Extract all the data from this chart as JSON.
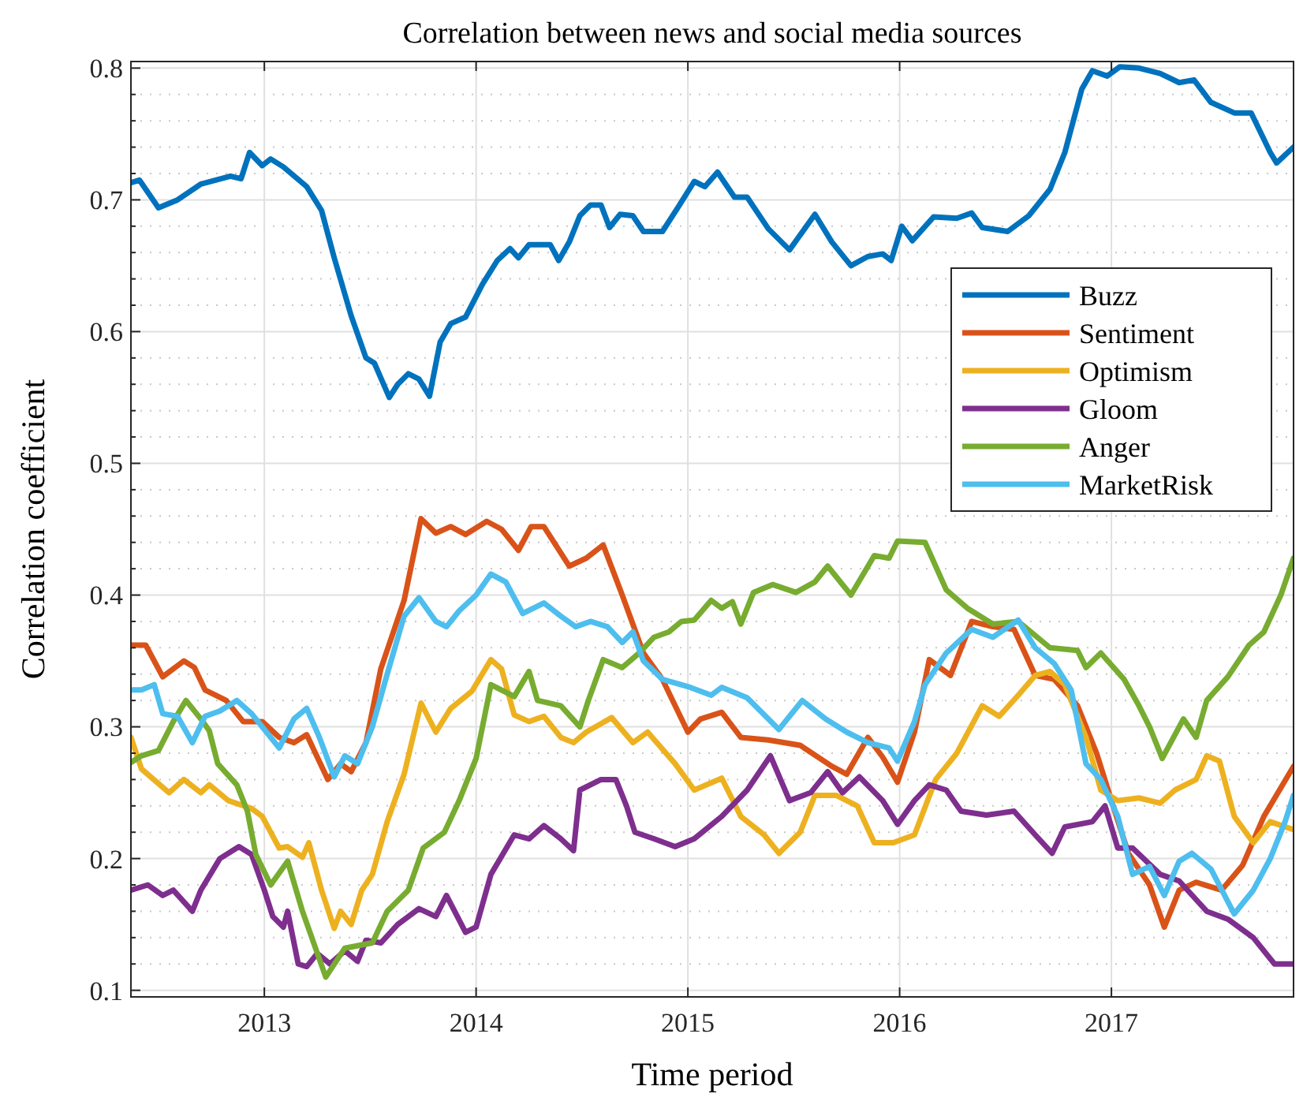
{
  "chart_data": {
    "type": "line",
    "title": "Correlation between news and social media sources",
    "xlabel": "Time period",
    "ylabel": "Correlation coefficient",
    "xlim": [
      2012.37,
      2017.86
    ],
    "xticks": [
      2013,
      2014,
      2015,
      2016,
      2017
    ],
    "ylim": [
      0.095,
      0.805
    ],
    "yticks": [
      {
        "value": 0.1,
        "label": "0.1"
      },
      {
        "value": 0.12,
        "label": null
      },
      {
        "value": 0.14,
        "label": null
      },
      {
        "value": 0.16,
        "label": null
      },
      {
        "value": 0.18,
        "label": null
      },
      {
        "value": 0.2,
        "label": "0.2"
      },
      {
        "value": 0.22,
        "label": null
      },
      {
        "value": 0.24,
        "label": null
      },
      {
        "value": 0.26,
        "label": null
      },
      {
        "value": 0.28,
        "label": null
      },
      {
        "value": 0.3,
        "label": "0.3"
      },
      {
        "value": 0.32,
        "label": null
      },
      {
        "value": 0.34,
        "label": null
      },
      {
        "value": 0.36,
        "label": null
      },
      {
        "value": 0.38,
        "label": null
      },
      {
        "value": 0.4,
        "label": "0.4"
      },
      {
        "value": 0.42,
        "label": null
      },
      {
        "value": 0.44,
        "label": null
      },
      {
        "value": 0.46,
        "label": null
      },
      {
        "value": 0.48,
        "label": null
      },
      {
        "value": 0.5,
        "label": "0.5"
      },
      {
        "value": 0.52,
        "label": null
      },
      {
        "value": 0.54,
        "label": null
      },
      {
        "value": 0.56,
        "label": null
      },
      {
        "value": 0.58,
        "label": null
      },
      {
        "value": 0.6,
        "label": "0.6"
      },
      {
        "value": 0.62,
        "label": null
      },
      {
        "value": 0.64,
        "label": null
      },
      {
        "value": 0.66,
        "label": null
      },
      {
        "value": 0.68,
        "label": null
      },
      {
        "value": 0.7,
        "label": "0.7"
      },
      {
        "value": 0.72,
        "label": null
      },
      {
        "value": 0.74,
        "label": null
      },
      {
        "value": 0.76,
        "label": null
      },
      {
        "value": 0.78,
        "label": null
      },
      {
        "value": 0.8,
        "label": "0.8"
      }
    ],
    "grid": true,
    "legend": "top right",
    "marker": "none",
    "line_style": "solid",
    "series": [
      {
        "name": "Buzz",
        "color": "#0072bd",
        "x": [
          2012.37,
          2012.41,
          2012.5,
          2012.59,
          2012.7,
          2012.84,
          2012.89,
          2012.93,
          2012.99,
          2013.03,
          2013.09,
          2013.2,
          2013.27,
          2013.33,
          2013.41,
          2013.48,
          2013.52,
          2013.59,
          2013.63,
          2013.68,
          2013.73,
          2013.78,
          2013.83,
          2013.88,
          2013.95,
          2014.03,
          2014.1,
          2014.16,
          2014.2,
          2014.25,
          2014.35,
          2014.39,
          2014.44,
          2014.49,
          2014.54,
          2014.59,
          2014.63,
          2014.68,
          2014.74,
          2014.79,
          2014.88,
          2014.96,
          2015.03,
          2015.08,
          2015.14,
          2015.22,
          2015.28,
          2015.38,
          2015.48,
          2015.6,
          2015.68,
          2015.77,
          2015.85,
          2015.92,
          2015.96,
          2016.01,
          2016.06,
          2016.16,
          2016.27,
          2016.34,
          2016.39,
          2016.51,
          2016.61,
          2016.71,
          2016.78,
          2016.86,
          2016.91,
          2016.98,
          2017.04,
          2017.13,
          2017.23,
          2017.32,
          2017.39,
          2017.47,
          2017.58,
          2017.66,
          2017.75,
          2017.78,
          2017.86
        ],
        "values": [
          0.713,
          0.715,
          0.694,
          0.7,
          0.712,
          0.718,
          0.716,
          0.736,
          0.726,
          0.731,
          0.725,
          0.71,
          0.692,
          0.656,
          0.612,
          0.58,
          0.576,
          0.55,
          0.56,
          0.568,
          0.564,
          0.551,
          0.592,
          0.606,
          0.611,
          0.636,
          0.654,
          0.663,
          0.656,
          0.666,
          0.666,
          0.654,
          0.668,
          0.688,
          0.696,
          0.696,
          0.679,
          0.689,
          0.688,
          0.676,
          0.676,
          0.696,
          0.714,
          0.71,
          0.721,
          0.702,
          0.702,
          0.678,
          0.662,
          0.689,
          0.668,
          0.65,
          0.657,
          0.659,
          0.654,
          0.68,
          0.669,
          0.687,
          0.686,
          0.69,
          0.679,
          0.676,
          0.688,
          0.708,
          0.736,
          0.784,
          0.798,
          0.794,
          0.801,
          0.8,
          0.796,
          0.789,
          0.791,
          0.774,
          0.766,
          0.766,
          0.736,
          0.728,
          0.74
        ]
      },
      {
        "name": "Sentiment",
        "color": "#d95319",
        "x": [
          2012.37,
          2012.44,
          2012.52,
          2012.62,
          2012.67,
          2012.72,
          2012.82,
          2012.9,
          2012.99,
          2013.07,
          2013.14,
          2013.2,
          2013.3,
          2013.36,
          2013.41,
          2013.48,
          2013.55,
          2013.66,
          2013.74,
          2013.81,
          2013.88,
          2013.95,
          2014.05,
          2014.12,
          2014.2,
          2014.26,
          2014.32,
          2014.44,
          2014.52,
          2014.6,
          2014.69,
          2014.79,
          2014.88,
          2015.0,
          2015.06,
          2015.16,
          2015.25,
          2015.38,
          2015.53,
          2015.68,
          2015.75,
          2015.85,
          2015.92,
          2015.99,
          2016.07,
          2016.14,
          2016.24,
          2016.34,
          2016.44,
          2016.54,
          2016.64,
          2016.73,
          2016.84,
          2016.93,
          2017.0,
          2017.08,
          2017.18,
          2017.25,
          2017.32,
          2017.4,
          2017.52,
          2017.62,
          2017.72,
          2017.86
        ],
        "values": [
          0.362,
          0.362,
          0.338,
          0.35,
          0.345,
          0.328,
          0.32,
          0.304,
          0.304,
          0.292,
          0.288,
          0.294,
          0.26,
          0.272,
          0.266,
          0.288,
          0.344,
          0.396,
          0.458,
          0.447,
          0.452,
          0.446,
          0.456,
          0.45,
          0.434,
          0.452,
          0.452,
          0.422,
          0.428,
          0.438,
          0.4,
          0.356,
          0.336,
          0.296,
          0.306,
          0.311,
          0.292,
          0.29,
          0.286,
          0.27,
          0.264,
          0.292,
          0.277,
          0.258,
          0.296,
          0.351,
          0.339,
          0.38,
          0.376,
          0.374,
          0.339,
          0.336,
          0.316,
          0.28,
          0.244,
          0.204,
          0.18,
          0.148,
          0.176,
          0.182,
          0.176,
          0.195,
          0.232,
          0.27
        ]
      },
      {
        "name": "Optimism",
        "color": "#edb120",
        "x": [
          2012.37,
          2012.42,
          2012.55,
          2012.62,
          2012.7,
          2012.74,
          2012.83,
          2012.94,
          2012.99,
          2013.07,
          2013.11,
          2013.18,
          2013.21,
          2013.27,
          2013.33,
          2013.36,
          2013.41,
          2013.46,
          2013.51,
          2013.58,
          2013.66,
          2013.74,
          2013.81,
          2013.88,
          2013.98,
          2014.07,
          2014.12,
          2014.18,
          2014.25,
          2014.32,
          2014.4,
          2014.46,
          2014.52,
          2014.64,
          2014.74,
          2014.81,
          2014.94,
          2015.03,
          2015.16,
          2015.25,
          2015.36,
          2015.43,
          2015.53,
          2015.6,
          2015.7,
          2015.8,
          2015.88,
          2015.97,
          2016.07,
          2016.17,
          2016.27,
          2016.39,
          2016.47,
          2016.56,
          2016.64,
          2016.71,
          2016.78,
          2016.88,
          2016.95,
          2017.03,
          2017.13,
          2017.23,
          2017.3,
          2017.4,
          2017.45,
          2017.51,
          2017.58,
          2017.67,
          2017.75,
          2017.86
        ],
        "values": [
          0.292,
          0.268,
          0.25,
          0.26,
          0.25,
          0.256,
          0.244,
          0.238,
          0.232,
          0.208,
          0.209,
          0.201,
          0.212,
          0.176,
          0.147,
          0.16,
          0.15,
          0.176,
          0.188,
          0.228,
          0.264,
          0.318,
          0.296,
          0.314,
          0.327,
          0.351,
          0.344,
          0.309,
          0.304,
          0.308,
          0.292,
          0.288,
          0.296,
          0.307,
          0.288,
          0.296,
          0.272,
          0.252,
          0.261,
          0.232,
          0.218,
          0.204,
          0.22,
          0.248,
          0.248,
          0.24,
          0.212,
          0.212,
          0.218,
          0.26,
          0.28,
          0.316,
          0.308,
          0.324,
          0.339,
          0.342,
          0.332,
          0.292,
          0.252,
          0.244,
          0.246,
          0.242,
          0.252,
          0.26,
          0.278,
          0.274,
          0.232,
          0.212,
          0.228,
          0.222
        ]
      },
      {
        "name": "Gloom",
        "color": "#7e2f8e",
        "x": [
          2012.37,
          2012.45,
          2012.52,
          2012.57,
          2012.66,
          2012.7,
          2012.79,
          2012.88,
          2012.94,
          2013.0,
          2013.04,
          2013.09,
          2013.11,
          2013.16,
          2013.2,
          2013.25,
          2013.31,
          2013.38,
          2013.44,
          2013.48,
          2013.55,
          2013.63,
          2013.73,
          2013.81,
          2013.86,
          2013.95,
          2014.0,
          2014.07,
          2014.18,
          2014.25,
          2014.32,
          2014.4,
          2014.46,
          2014.49,
          2014.59,
          2014.66,
          2014.71,
          2014.75,
          2014.84,
          2014.94,
          2015.03,
          2015.16,
          2015.28,
          2015.39,
          2015.48,
          2015.58,
          2015.66,
          2015.73,
          2015.81,
          2015.92,
          2015.99,
          2016.07,
          2016.14,
          2016.22,
          2016.29,
          2016.41,
          2016.54,
          2016.64,
          2016.72,
          2016.78,
          2016.91,
          2016.97,
          2017.03,
          2017.1,
          2017.23,
          2017.32,
          2017.45,
          2017.55,
          2017.67,
          2017.77,
          2017.86
        ],
        "values": [
          0.176,
          0.18,
          0.172,
          0.176,
          0.16,
          0.176,
          0.2,
          0.209,
          0.203,
          0.176,
          0.156,
          0.148,
          0.16,
          0.12,
          0.118,
          0.128,
          0.12,
          0.13,
          0.122,
          0.138,
          0.136,
          0.15,
          0.162,
          0.156,
          0.172,
          0.144,
          0.148,
          0.188,
          0.218,
          0.215,
          0.225,
          0.215,
          0.206,
          0.252,
          0.26,
          0.26,
          0.24,
          0.22,
          0.215,
          0.209,
          0.215,
          0.232,
          0.252,
          0.278,
          0.244,
          0.25,
          0.266,
          0.25,
          0.262,
          0.244,
          0.226,
          0.244,
          0.256,
          0.252,
          0.236,
          0.233,
          0.236,
          0.218,
          0.204,
          0.224,
          0.228,
          0.24,
          0.208,
          0.208,
          0.188,
          0.183,
          0.16,
          0.154,
          0.14,
          0.12,
          0.12
        ]
      },
      {
        "name": "Anger",
        "color": "#77ac30",
        "x": [
          2012.37,
          2012.42,
          2012.5,
          2012.57,
          2012.63,
          2012.7,
          2012.74,
          2012.78,
          2012.87,
          2012.92,
          2012.96,
          2013.03,
          2013.11,
          2013.18,
          2013.29,
          2013.38,
          2013.51,
          2013.58,
          2013.68,
          2013.75,
          2013.85,
          2013.92,
          2014.0,
          2014.07,
          2014.18,
          2014.25,
          2014.29,
          2014.4,
          2014.49,
          2014.53,
          2014.6,
          2014.69,
          2014.77,
          2014.84,
          2014.91,
          2014.97,
          2015.03,
          2015.11,
          2015.16,
          2015.21,
          2015.25,
          2015.31,
          2015.4,
          2015.51,
          2015.6,
          2015.66,
          2015.77,
          2015.88,
          2015.95,
          2015.99,
          2016.12,
          2016.22,
          2016.32,
          2016.44,
          2016.56,
          2016.71,
          2016.84,
          2016.88,
          2016.95,
          2017.06,
          2017.13,
          2017.18,
          2017.24,
          2017.34,
          2017.4,
          2017.45,
          2017.55,
          2017.65,
          2017.72,
          2017.8,
          2017.86
        ],
        "values": [
          0.273,
          0.278,
          0.282,
          0.304,
          0.32,
          0.306,
          0.297,
          0.272,
          0.256,
          0.236,
          0.203,
          0.18,
          0.198,
          0.16,
          0.11,
          0.132,
          0.136,
          0.16,
          0.176,
          0.208,
          0.22,
          0.244,
          0.276,
          0.332,
          0.323,
          0.342,
          0.32,
          0.316,
          0.3,
          0.32,
          0.351,
          0.345,
          0.356,
          0.368,
          0.372,
          0.38,
          0.381,
          0.396,
          0.39,
          0.395,
          0.378,
          0.402,
          0.408,
          0.402,
          0.41,
          0.422,
          0.4,
          0.43,
          0.428,
          0.441,
          0.44,
          0.404,
          0.39,
          0.378,
          0.38,
          0.36,
          0.358,
          0.345,
          0.356,
          0.336,
          0.316,
          0.3,
          0.276,
          0.306,
          0.292,
          0.32,
          0.338,
          0.362,
          0.372,
          0.4,
          0.428
        ]
      },
      {
        "name": "MarketRisk",
        "color": "#4dbeee",
        "x": [
          2012.37,
          2012.42,
          2012.48,
          2012.52,
          2012.59,
          2012.66,
          2012.72,
          2012.79,
          2012.87,
          2012.94,
          2013.07,
          2013.14,
          2013.2,
          2013.26,
          2013.33,
          2013.38,
          2013.44,
          2013.51,
          2013.58,
          2013.66,
          2013.73,
          2013.81,
          2013.86,
          2013.92,
          2014.0,
          2014.07,
          2014.14,
          2014.22,
          2014.32,
          2014.4,
          2014.47,
          2014.54,
          2014.62,
          2014.69,
          2014.74,
          2014.79,
          2014.88,
          2015.01,
          2015.11,
          2015.16,
          2015.28,
          2015.43,
          2015.54,
          2015.65,
          2015.75,
          2015.85,
          2015.95,
          2015.99,
          2016.07,
          2016.12,
          2016.22,
          2016.34,
          2016.44,
          2016.56,
          2016.64,
          2016.73,
          2016.81,
          2016.88,
          2016.95,
          2017.03,
          2017.1,
          2017.18,
          2017.25,
          2017.32,
          2017.38,
          2017.47,
          2017.58,
          2017.67,
          2017.75,
          2017.82,
          2017.86
        ],
        "values": [
          0.328,
          0.328,
          0.332,
          0.31,
          0.308,
          0.288,
          0.308,
          0.312,
          0.32,
          0.31,
          0.284,
          0.306,
          0.314,
          0.292,
          0.262,
          0.278,
          0.272,
          0.3,
          0.34,
          0.384,
          0.398,
          0.38,
          0.376,
          0.388,
          0.4,
          0.416,
          0.41,
          0.386,
          0.394,
          0.384,
          0.376,
          0.38,
          0.376,
          0.364,
          0.372,
          0.35,
          0.336,
          0.33,
          0.324,
          0.33,
          0.322,
          0.298,
          0.32,
          0.306,
          0.296,
          0.288,
          0.284,
          0.274,
          0.304,
          0.332,
          0.356,
          0.374,
          0.368,
          0.381,
          0.36,
          0.348,
          0.328,
          0.272,
          0.26,
          0.232,
          0.188,
          0.194,
          0.172,
          0.198,
          0.204,
          0.192,
          0.158,
          0.176,
          0.2,
          0.228,
          0.248
        ]
      }
    ]
  }
}
